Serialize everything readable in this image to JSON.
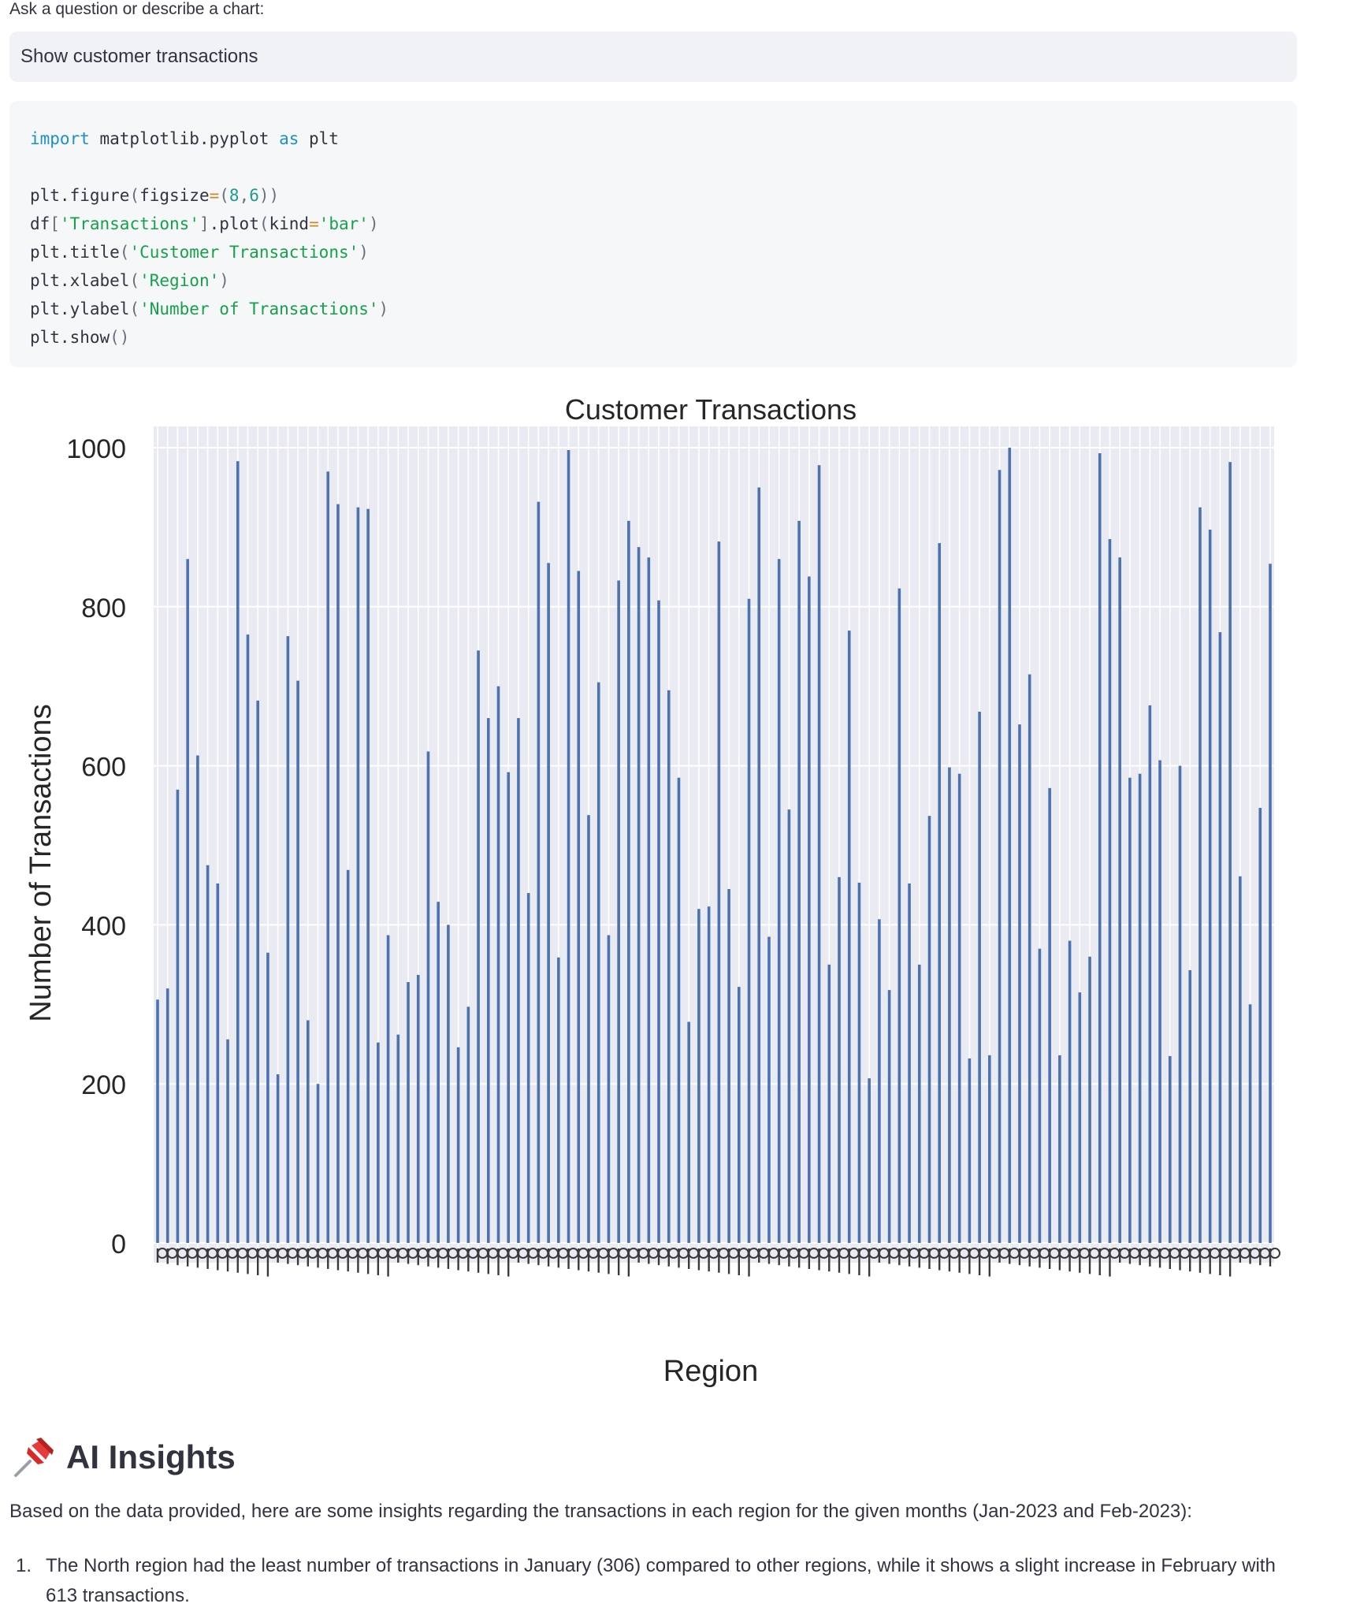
{
  "prompt": {
    "label": "Ask a question or describe a chart:",
    "value": "Show customer transactions"
  },
  "code": {
    "line1": [
      {
        "t": "import",
        "c": "kw"
      },
      {
        "t": " matplotlib.pyplot ",
        "c": ""
      },
      {
        "t": "as",
        "c": "kw"
      },
      {
        "t": " plt",
        "c": ""
      }
    ],
    "line2": [
      {
        "t": "plt.figure",
        "c": ""
      },
      {
        "t": "(",
        "c": "punc"
      },
      {
        "t": "figsize",
        "c": ""
      },
      {
        "t": "=",
        "c": "op"
      },
      {
        "t": "(",
        "c": "punc"
      },
      {
        "t": "8",
        "c": "num"
      },
      {
        "t": ",",
        "c": "punc"
      },
      {
        "t": "6",
        "c": "num"
      },
      {
        "t": "))",
        "c": "punc"
      }
    ],
    "line3": [
      {
        "t": "df",
        "c": ""
      },
      {
        "t": "[",
        "c": "punc"
      },
      {
        "t": "'Transactions'",
        "c": "str"
      },
      {
        "t": "]",
        "c": "punc"
      },
      {
        "t": ".plot",
        "c": ""
      },
      {
        "t": "(",
        "c": "punc"
      },
      {
        "t": "kind",
        "c": ""
      },
      {
        "t": "=",
        "c": "op"
      },
      {
        "t": "'bar'",
        "c": "str"
      },
      {
        "t": ")",
        "c": "punc"
      }
    ],
    "line4": [
      {
        "t": "plt.title",
        "c": ""
      },
      {
        "t": "(",
        "c": "punc"
      },
      {
        "t": "'Customer Transactions'",
        "c": "str"
      },
      {
        "t": ")",
        "c": "punc"
      }
    ],
    "line5": [
      {
        "t": "plt.xlabel",
        "c": ""
      },
      {
        "t": "(",
        "c": "punc"
      },
      {
        "t": "'Region'",
        "c": "str"
      },
      {
        "t": ")",
        "c": "punc"
      }
    ],
    "line6": [
      {
        "t": "plt.ylabel",
        "c": ""
      },
      {
        "t": "(",
        "c": "punc"
      },
      {
        "t": "'Number of Transactions'",
        "c": "str"
      },
      {
        "t": ")",
        "c": "punc"
      }
    ],
    "line7": [
      {
        "t": "plt.show",
        "c": ""
      },
      {
        "t": "()",
        "c": "punc"
      }
    ]
  },
  "chart_data": {
    "type": "bar",
    "title": "Customer Transactions",
    "xlabel": "Region",
    "ylabel": "Number of Transactions",
    "ylim": [
      0,
      1050
    ],
    "yticks": [
      0,
      200,
      400,
      600,
      800,
      1000
    ],
    "grid": true,
    "legend": "none",
    "bar_color": "#4c72b0",
    "values": [
      306,
      320,
      570,
      860,
      613,
      475,
      452,
      256,
      983,
      765,
      682,
      365,
      212,
      763,
      707,
      280,
      200,
      970,
      929,
      469,
      925,
      923,
      252,
      387,
      262,
      328,
      337,
      618,
      429,
      400,
      246,
      297,
      745,
      660,
      700,
      592,
      660,
      440,
      932,
      855,
      359,
      997,
      845,
      538,
      705,
      387,
      833,
      908,
      875,
      862,
      808,
      695,
      585,
      278,
      420,
      423,
      882,
      445,
      322,
      810,
      950,
      385,
      860,
      545,
      908,
      838,
      978,
      350,
      460,
      770,
      453,
      207,
      407,
      318,
      823,
      452,
      350,
      537,
      880,
      598,
      590,
      232,
      668,
      236,
      972,
      1000,
      652,
      715,
      370,
      572,
      236,
      380,
      315,
      360,
      993,
      885,
      862,
      585,
      590,
      676,
      607,
      235,
      600,
      343,
      925,
      897,
      768,
      982,
      461,
      300,
      547,
      854
    ],
    "bar_count": 112,
    "tick_label_note": "112 rotated x tick labels overlap and are illegible in the screenshot"
  },
  "insights": {
    "pin_icon": "pushpin-icon",
    "title": "AI Insights",
    "intro": "Based on the data provided, here are some insights regarding the transactions in each region for the given months (Jan-2023 and Feb-2023):",
    "items": [
      {
        "number": "1.",
        "text": "The North region had the least number of transactions in January (306) compared to other regions, while it shows a slight increase in February with 613 transactions."
      }
    ]
  }
}
